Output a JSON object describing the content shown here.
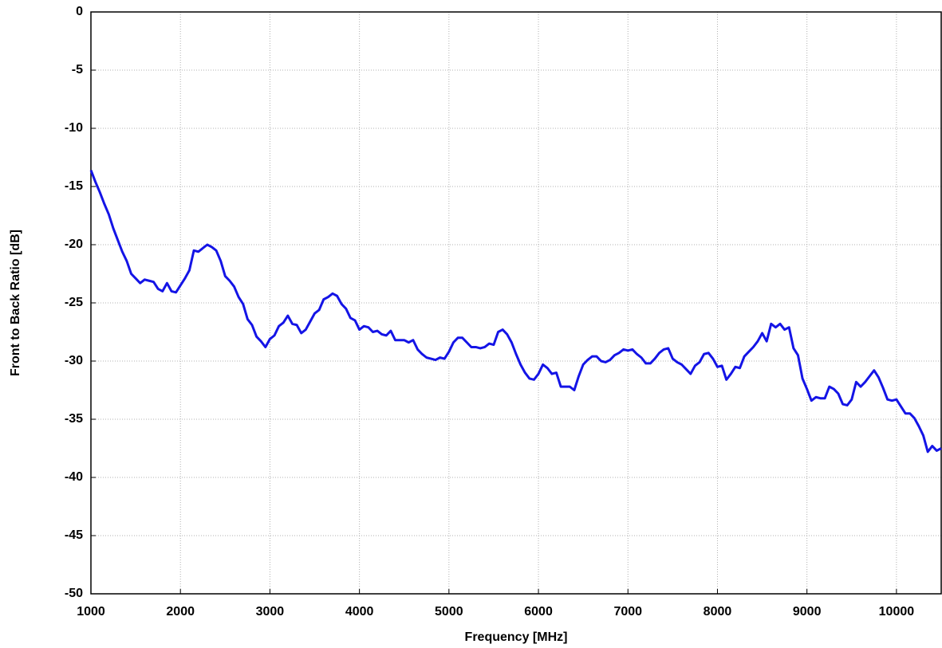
{
  "chart_data": {
    "type": "line",
    "x_label": "Frequency [MHz]",
    "y_label": "Front to Back Ratio [dB]",
    "x": [
      1000,
      1050,
      1100,
      1150,
      1200,
      1250,
      1300,
      1350,
      1400,
      1450,
      1500,
      1550,
      1600,
      1650,
      1700,
      1750,
      1800,
      1850,
      1900,
      1950,
      2000,
      2050,
      2100,
      2150,
      2200,
      2250,
      2300,
      2350,
      2400,
      2450,
      2500,
      2550,
      2600,
      2650,
      2700,
      2750,
      2800,
      2850,
      2900,
      2950,
      3000,
      3050,
      3100,
      3150,
      3200,
      3250,
      3300,
      3350,
      3400,
      3450,
      3500,
      3550,
      3600,
      3650,
      3700,
      3750,
      3800,
      3850,
      3900,
      3950,
      4000,
      4050,
      4100,
      4150,
      4200,
      4250,
      4300,
      4350,
      4400,
      4450,
      4500,
      4550,
      4600,
      4650,
      4700,
      4750,
      4800,
      4850,
      4900,
      4950,
      5000,
      5050,
      5100,
      5150,
      5200,
      5250,
      5300,
      5350,
      5400,
      5450,
      5500,
      5550,
      5600,
      5650,
      5700,
      5750,
      5800,
      5850,
      5900,
      5950,
      6000,
      6050,
      6100,
      6150,
      6200,
      6250,
      6300,
      6350,
      6400,
      6450,
      6500,
      6550,
      6600,
      6650,
      6700,
      6750,
      6800,
      6850,
      6900,
      6950,
      7000,
      7050,
      7100,
      7150,
      7200,
      7250,
      7300,
      7350,
      7400,
      7450,
      7500,
      7550,
      7600,
      7650,
      7700,
      7750,
      7800,
      7850,
      7900,
      7950,
      8000,
      8050,
      8100,
      8150,
      8200,
      8250,
      8300,
      8350,
      8400,
      8450,
      8500,
      8550,
      8600,
      8650,
      8700,
      8750,
      8800,
      8850,
      8900,
      8950,
      9000,
      9050,
      9100,
      9150,
      9200,
      9250,
      9300,
      9350,
      9400,
      9450,
      9500,
      9550,
      9600,
      9650,
      9700,
      9750,
      9800,
      9850,
      9900,
      9950,
      10000,
      10050,
      10100,
      10150,
      10200,
      10250,
      10300,
      10350,
      10400,
      10450,
      10500
    ],
    "values": [
      -13.6,
      -14.6,
      -15.5,
      -16.5,
      -17.4,
      -18.6,
      -19.6,
      -20.6,
      -21.4,
      -22.5,
      -22.9,
      -23.3,
      -23.0,
      -23.1,
      -23.2,
      -23.8,
      -24.0,
      -23.3,
      -24.0,
      -24.1,
      -23.5,
      -22.9,
      -22.2,
      -20.5,
      -20.6,
      -20.3,
      -20.0,
      -20.2,
      -20.5,
      -21.4,
      -22.7,
      -23.1,
      -23.6,
      -24.5,
      -25.1,
      -26.4,
      -26.9,
      -27.9,
      -28.3,
      -28.8,
      -28.1,
      -27.8,
      -27.0,
      -26.7,
      -26.1,
      -26.8,
      -26.9,
      -27.6,
      -27.3,
      -26.6,
      -25.9,
      -25.6,
      -24.7,
      -24.5,
      -24.2,
      -24.4,
      -25.1,
      -25.5,
      -26.3,
      -26.5,
      -27.3,
      -27.0,
      -27.1,
      -27.5,
      -27.4,
      -27.7,
      -27.8,
      -27.4,
      -28.2,
      -28.2,
      -28.2,
      -28.4,
      -28.2,
      -29.0,
      -29.4,
      -29.7,
      -29.8,
      -29.9,
      -29.7,
      -29.8,
      -29.2,
      -28.4,
      -28.0,
      -28.0,
      -28.4,
      -28.8,
      -28.8,
      -28.9,
      -28.8,
      -28.5,
      -28.6,
      -27.5,
      -27.3,
      -27.7,
      -28.4,
      -29.4,
      -30.3,
      -31.0,
      -31.5,
      -31.6,
      -31.1,
      -30.3,
      -30.6,
      -31.1,
      -31.0,
      -32.2,
      -32.2,
      -32.2,
      -32.5,
      -31.3,
      -30.3,
      -29.9,
      -29.6,
      -29.6,
      -30.0,
      -30.1,
      -29.9,
      -29.5,
      -29.3,
      -29.0,
      -29.1,
      -29.0,
      -29.4,
      -29.7,
      -30.2,
      -30.2,
      -29.8,
      -29.3,
      -29.0,
      -28.9,
      -29.8,
      -30.1,
      -30.3,
      -30.7,
      -31.1,
      -30.4,
      -30.1,
      -29.4,
      -29.3,
      -29.8,
      -30.5,
      -30.4,
      -31.6,
      -31.1,
      -30.5,
      -30.6,
      -29.6,
      -29.2,
      -28.8,
      -28.3,
      -27.6,
      -28.3,
      -26.8,
      -27.1,
      -26.8,
      -27.3,
      -27.1,
      -28.9,
      -29.5,
      -31.5,
      -32.4,
      -33.4,
      -33.1,
      -33.2,
      -33.2,
      -32.2,
      -32.4,
      -32.8,
      -33.7,
      -33.8,
      -33.3,
      -31.8,
      -32.2,
      -31.8,
      -31.3,
      -30.8,
      -31.4,
      -32.3,
      -33.3,
      -33.4,
      -33.3,
      -33.9,
      -34.5,
      -34.5,
      -34.9,
      -35.6,
      -36.4,
      -37.8,
      -37.3,
      -37.7,
      -37.5
    ],
    "color": "#1414e6",
    "xlim": [
      1000,
      10500
    ],
    "ylim": [
      -50,
      0
    ],
    "xticks": [
      1000,
      2000,
      3000,
      4000,
      5000,
      6000,
      7000,
      8000,
      9000,
      10000
    ],
    "yticks": [
      0,
      -5,
      -10,
      -15,
      -20,
      -25,
      -30,
      -35,
      -40,
      -45,
      -50
    ],
    "grid": true
  }
}
